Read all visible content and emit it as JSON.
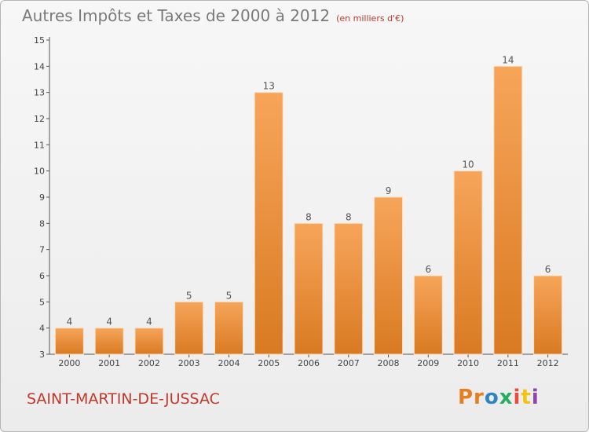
{
  "header": {
    "title": "Autres Impôts et Taxes de 2000 à 2012",
    "subtitle": "(en milliers d'€)"
  },
  "footer": {
    "commune": "SAINT-MARTIN-DE-JUSSAC",
    "logo_text": [
      "Pr",
      "o",
      "x",
      "i",
      "t",
      "i"
    ]
  },
  "colors": {
    "bar_top": "#f7a55a",
    "bar_bottom": "#d97a22",
    "commune_text": "#c0392b",
    "axis": "#555555"
  },
  "chart_data": {
    "type": "bar",
    "title": "Autres Impôts et Taxes de 2000 à 2012",
    "subtitle": "(en milliers d'€)",
    "categories": [
      "2000",
      "2001",
      "2002",
      "2003",
      "2004",
      "2005",
      "2006",
      "2007",
      "2008",
      "2009",
      "2010",
      "2011",
      "2012"
    ],
    "values": [
      4,
      4,
      4,
      5,
      5,
      13,
      8,
      8,
      9,
      6,
      10,
      14,
      6
    ],
    "ylim": [
      3,
      15
    ],
    "yticks": [
      3,
      4,
      5,
      6,
      7,
      8,
      9,
      10,
      11,
      12,
      13,
      14,
      15
    ],
    "grid": false,
    "data_labels": true
  }
}
